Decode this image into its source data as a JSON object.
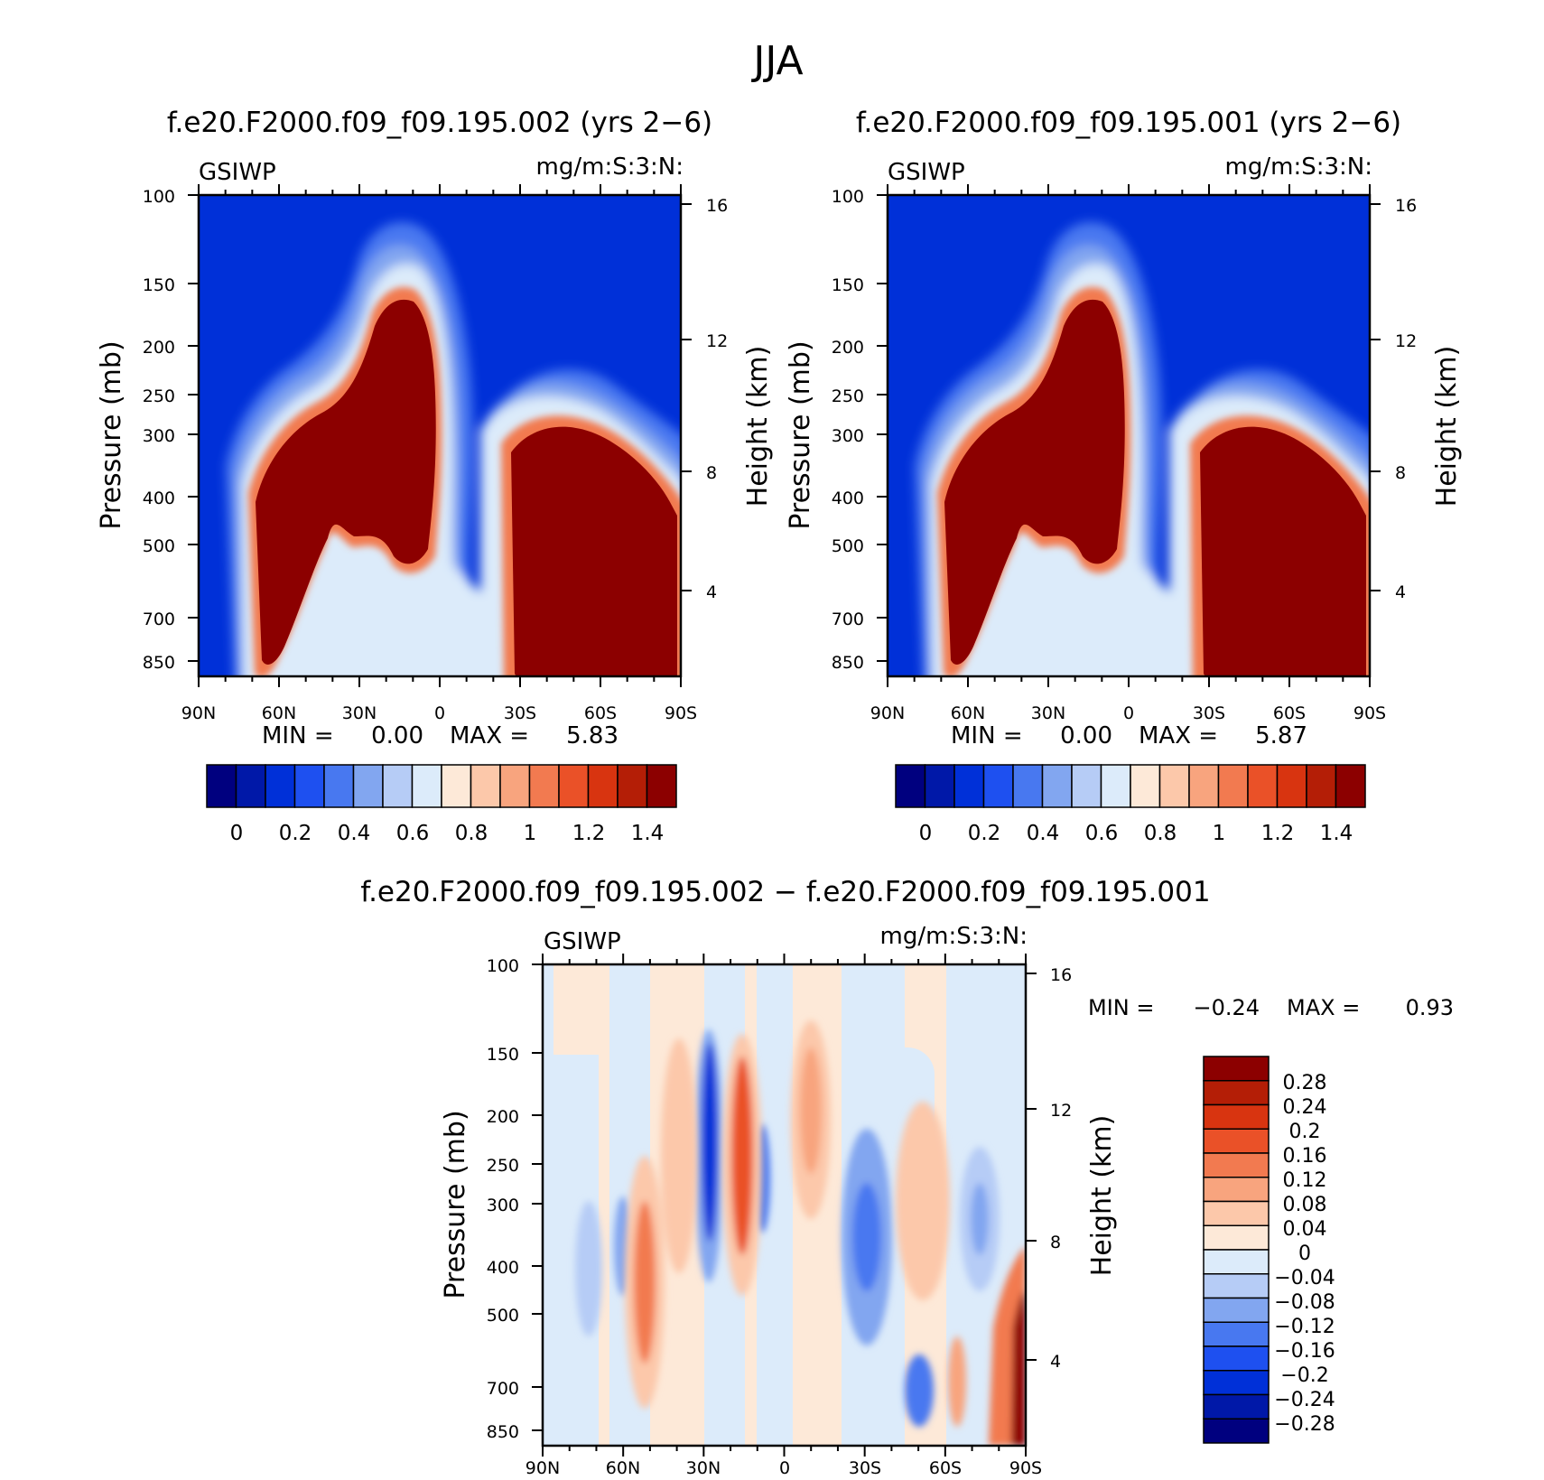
{
  "page_title": "JJA",
  "colors": {
    "abs_scale": [
      "#00007f",
      "#0018a8",
      "#0030d8",
      "#1e50f0",
      "#4878f0",
      "#82a6f0",
      "#b6ccf6",
      "#dcebfa",
      "#fde9d8",
      "#fcc8aa",
      "#f8a47e",
      "#f27a50",
      "#ea5128",
      "#d83410",
      "#b41e06",
      "#8c0000"
    ],
    "diff_scale": [
      "#00007f",
      "#0018a8",
      "#0030d8",
      "#1e50f0",
      "#4878f0",
      "#82a6f0",
      "#b6ccf6",
      "#dcebfa",
      "#fde9d8",
      "#fcc8aa",
      "#f8a47e",
      "#f27a50",
      "#ea5128",
      "#d83410",
      "#b41e06",
      "#8c0000"
    ]
  },
  "panels": [
    {
      "id": "case1",
      "title": "f.e20.F2000.f09_f09.195.002 (yrs 2−6)",
      "var_label": "GSIWP",
      "units_label": "mg/m:S:3:N:",
      "min_label": "MIN =",
      "min_value": "0.00",
      "max_label": "MAX =",
      "max_value": "5.83"
    },
    {
      "id": "case2",
      "title": "f.e20.F2000.f09_f09.195.001 (yrs 2−6)",
      "var_label": "GSIWP",
      "units_label": "mg/m:S:3:N:",
      "min_label": "MIN =",
      "min_value": "0.00",
      "max_label": "MAX =",
      "max_value": "5.87"
    },
    {
      "id": "diff",
      "title": "f.e20.F2000.f09_f09.195.002 − f.e20.F2000.f09_f09.195.001",
      "var_label": "GSIWP",
      "units_label": "mg/m:S:3:N:",
      "min_label": "MIN =",
      "min_value": "−0.24",
      "max_label": "MAX =",
      "max_value": "0.93"
    }
  ],
  "axes": {
    "x_ticks": [
      "90N",
      "60N",
      "30N",
      "0",
      "30S",
      "60S",
      "90S"
    ],
    "y_label": "Pressure (mb)",
    "y_ticks": [
      "100",
      "150",
      "200",
      "250",
      "300",
      "400",
      "500",
      "700",
      "850"
    ],
    "y2_label": "Height (km)",
    "y2_ticks": [
      "16",
      "12",
      "8",
      "4"
    ]
  },
  "colorbars": {
    "abs_labels": [
      "0",
      "0.2",
      "0.4",
      "0.6",
      "0.8",
      "1",
      "1.2",
      "1.4"
    ],
    "diff_labels": [
      "0.28",
      "0.24",
      "0.2",
      "0.16",
      "0.12",
      "0.08",
      "0.04",
      "0",
      "−0.04",
      "−0.08",
      "−0.12",
      "−0.16",
      "−0.2",
      "−0.24",
      "−0.28"
    ]
  },
  "chart_data": [
    {
      "type": "heatmap",
      "title": "f.e20.F2000.f09_f09.195.002 (yrs 2−6)",
      "variable": "GSIWP",
      "units": "mg/m:S:3:N:",
      "x_range": [
        "90N",
        "90S"
      ],
      "y_range_mb": [
        100,
        850
      ],
      "y_scale": "log",
      "contour_levels": [
        0,
        0.1,
        0.2,
        0.3,
        0.4,
        0.5,
        0.6,
        0.7,
        0.8,
        0.9,
        1,
        1.1,
        1.2,
        1.3,
        1.4
      ],
      "min": 0.0,
      "max": 5.83,
      "features": [
        {
          "region": "NH subtropics to equator (lat 68N–0)",
          "pressure_mb": [
            170,
            850
          ],
          "value": ">1.4"
        },
        {
          "region": "SH mid/high latitudes (lat 30S–90S)",
          "pressure_mb": [
            280,
            850
          ],
          "value": ">1.4"
        }
      ]
    },
    {
      "type": "heatmap",
      "title": "f.e20.F2000.f09_f09.195.001 (yrs 2−6)",
      "variable": "GSIWP",
      "units": "mg/m:S:3:N:",
      "x_range": [
        "90N",
        "90S"
      ],
      "y_range_mb": [
        100,
        850
      ],
      "y_scale": "log",
      "contour_levels": [
        0,
        0.1,
        0.2,
        0.3,
        0.4,
        0.5,
        0.6,
        0.7,
        0.8,
        0.9,
        1,
        1.1,
        1.2,
        1.3,
        1.4
      ],
      "min": 0.0,
      "max": 5.87,
      "features": [
        {
          "region": "NH subtropics to equator (lat 68N–0)",
          "pressure_mb": [
            170,
            850
          ],
          "value": ">1.4"
        },
        {
          "region": "SH mid/high latitudes (lat 30S–90S)",
          "pressure_mb": [
            280,
            850
          ],
          "value": ">1.4"
        }
      ]
    },
    {
      "type": "heatmap",
      "title": "f.e20.F2000.f09_f09.195.002 − f.e20.F2000.f09_f09.195.001",
      "variable": "GSIWP",
      "units": "mg/m:S:3:N:",
      "x_range": [
        "90N",
        "90S"
      ],
      "y_range_mb": [
        100,
        850
      ],
      "y_scale": "log",
      "contour_levels": [
        -0.28,
        -0.24,
        -0.2,
        -0.16,
        -0.12,
        -0.08,
        -0.04,
        0,
        0.04,
        0.08,
        0.12,
        0.16,
        0.2,
        0.24,
        0.28
      ],
      "min": -0.24,
      "max": 0.93
    }
  ]
}
